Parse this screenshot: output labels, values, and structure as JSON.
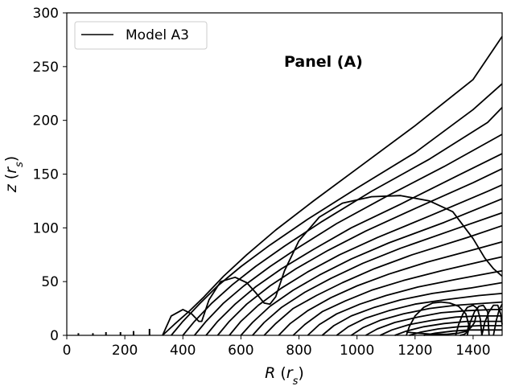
{
  "chart_data": {
    "type": "line",
    "title": "",
    "xlabel": "R (r_s)",
    "ylabel": "z (r_s)",
    "xlim": [
      0,
      1500
    ],
    "ylim": [
      0,
      300
    ],
    "xticks": [
      0,
      200,
      400,
      600,
      800,
      1000,
      1200,
      1400
    ],
    "yticks": [
      0,
      50,
      100,
      150,
      200,
      250,
      300
    ],
    "grid": false,
    "legend": {
      "placement": "top-left",
      "entries": [
        "Model A3"
      ]
    },
    "annotation": "Panel (A)",
    "colors": {
      "line": "#000000",
      "background": "#ffffff"
    },
    "series": [
      {
        "name": "Model A3",
        "role": "wavy outer boundary",
        "x": [
          330,
          360,
          400,
          430,
          455,
          465,
          490,
          530,
          580,
          620,
          650,
          680,
          700,
          720,
          750,
          800,
          870,
          950,
          1050,
          1150,
          1250,
          1330,
          1400,
          1440,
          1470,
          1500
        ],
        "y": [
          0,
          18,
          24,
          20,
          13,
          13,
          33,
          50,
          54,
          49,
          40,
          30,
          29,
          36,
          60,
          88,
          110,
          123,
          129,
          130,
          125,
          115,
          90,
          72,
          62,
          55
        ]
      },
      {
        "x": [
          330,
          370,
          420,
          470,
          540,
          620,
          720,
          850,
          1000,
          1200,
          1400,
          1500
        ],
        "y": [
          0,
          10,
          22,
          35,
          55,
          75,
          98,
          125,
          155,
          195,
          238,
          278
        ]
      },
      {
        "x": [
          360,
          400,
          460,
          520,
          600,
          700,
          830,
          1000,
          1200,
          1400,
          1500
        ],
        "y": [
          0,
          13,
          30,
          46,
          64,
          84,
          108,
          137,
          170,
          210,
          234
        ]
      },
      {
        "x": [
          400,
          440,
          500,
          570,
          650,
          750,
          880,
          1050,
          1250,
          1450,
          1500
        ],
        "y": [
          0,
          13,
          30,
          47,
          64,
          83,
          106,
          134,
          164,
          198,
          212
        ]
      },
      {
        "x": [
          440,
          480,
          540,
          610,
          700,
          800,
          930,
          1100,
          1300,
          1500
        ],
        "y": [
          0,
          13,
          30,
          46,
          64,
          82,
          104,
          129,
          157,
          187
        ]
      },
      {
        "x": [
          480,
          520,
          580,
          650,
          740,
          850,
          980,
          1150,
          1350,
          1500
        ],
        "y": [
          0,
          13,
          29,
          45,
          62,
          80,
          100,
          122,
          149,
          169
        ]
      },
      {
        "x": [
          520,
          560,
          620,
          700,
          790,
          900,
          1030,
          1200,
          1400,
          1500
        ],
        "y": [
          0,
          13,
          29,
          46,
          62,
          79,
          97,
          118,
          142,
          155
        ]
      },
      {
        "x": [
          560,
          600,
          660,
          740,
          830,
          940,
          1070,
          1250,
          1450,
          1500
        ],
        "y": [
          0,
          13,
          28,
          44,
          59,
          75,
          91,
          111,
          134,
          140
        ]
      },
      {
        "x": [
          600,
          640,
          700,
          780,
          870,
          980,
          1110,
          1300,
          1500
        ],
        "y": [
          0,
          12,
          27,
          42,
          56,
          71,
          86,
          105,
          127
        ]
      },
      {
        "x": [
          640,
          680,
          740,
          820,
          910,
          1020,
          1150,
          1340,
          1500
        ],
        "y": [
          0,
          12,
          26,
          40,
          53,
          67,
          81,
          99,
          114
        ]
      },
      {
        "x": [
          680,
          720,
          780,
          860,
          950,
          1060,
          1190,
          1380,
          1500
        ],
        "y": [
          0,
          11,
          25,
          37,
          49,
          62,
          75,
          91,
          102
        ]
      },
      {
        "x": [
          730,
          770,
          830,
          910,
          1000,
          1110,
          1240,
          1420,
          1500
        ],
        "y": [
          0,
          11,
          23,
          35,
          46,
          57,
          68,
          81,
          87
        ]
      },
      {
        "x": [
          780,
          820,
          880,
          960,
          1050,
          1160,
          1290,
          1450,
          1500
        ],
        "y": [
          0,
          10,
          22,
          32,
          42,
          51,
          60,
          70,
          73
        ]
      },
      {
        "x": [
          830,
          870,
          930,
          1010,
          1100,
          1210,
          1340,
          1500
        ],
        "y": [
          0,
          10,
          20,
          29,
          37,
          45,
          52,
          60
        ]
      },
      {
        "x": [
          880,
          920,
          980,
          1060,
          1150,
          1260,
          1390,
          1500
        ],
        "y": [
          0,
          9,
          18,
          26,
          33,
          39,
          44,
          49
        ]
      },
      {
        "x": [
          930,
          970,
          1030,
          1110,
          1200,
          1300,
          1420,
          1500
        ],
        "y": [
          0,
          8,
          16,
          23,
          29,
          33,
          37,
          39
        ]
      },
      {
        "x": [
          980,
          1020,
          1080,
          1160,
          1250,
          1340,
          1450,
          1500
        ],
        "y": [
          0,
          7,
          14,
          20,
          25,
          28,
          30,
          31
        ]
      },
      {
        "x": [
          1030,
          1070,
          1130,
          1210,
          1290,
          1380,
          1470,
          1500
        ],
        "y": [
          0,
          6,
          12,
          17,
          21,
          23,
          24,
          24
        ]
      },
      {
        "x": [
          1080,
          1120,
          1180,
          1260,
          1340,
          1420,
          1500
        ],
        "y": [
          0,
          5,
          10,
          14,
          17,
          18,
          18
        ]
      },
      {
        "x": [
          1130,
          1170,
          1230,
          1300,
          1380,
          1450,
          1500
        ],
        "y": [
          0,
          4,
          8,
          11,
          13,
          13,
          13
        ]
      },
      {
        "x": [
          1180,
          1220,
          1280,
          1350,
          1420,
          1470,
          1500
        ],
        "y": [
          0,
          3,
          6,
          8,
          9,
          9,
          9
        ]
      },
      {
        "x": [
          1230,
          1270,
          1330,
          1390,
          1450,
          1500
        ],
        "y": [
          0,
          2,
          4,
          5,
          5,
          5
        ]
      },
      {
        "x": [
          1170,
          1180,
          1200,
          1230,
          1260,
          1290,
          1320,
          1350,
          1375,
          1385,
          1380,
          1370,
          1355
        ],
        "y": [
          0,
          8,
          18,
          26,
          30,
          31,
          30,
          27,
          20,
          10,
          3,
          1,
          0
        ]
      },
      {
        "x": [
          1170,
          1210,
          1260,
          1310,
          1350,
          1380,
          1395,
          1405,
          1410
        ],
        "y": [
          3,
          2,
          1,
          1,
          2,
          4,
          8,
          12,
          18
        ]
      },
      {
        "x": [
          1340,
          1350,
          1365,
          1380,
          1400,
          1415,
          1425,
          1430
        ],
        "y": [
          0,
          10,
          20,
          26,
          28,
          25,
          15,
          0
        ]
      },
      {
        "x": [
          1380,
          1390,
          1405,
          1420,
          1435,
          1450,
          1455
        ],
        "y": [
          0,
          12,
          22,
          27,
          28,
          22,
          0
        ]
      },
      {
        "x": [
          1430,
          1440,
          1455,
          1470,
          1485,
          1495,
          1500
        ],
        "y": [
          0,
          12,
          22,
          28,
          28,
          20,
          10
        ]
      },
      {
        "x": [
          1470,
          1480,
          1490,
          1500
        ],
        "y": [
          0,
          14,
          24,
          29
        ]
      }
    ],
    "small_markers": {
      "x": [
        40,
        90,
        135,
        185,
        230,
        285
      ],
      "heights": [
        2,
        2,
        3,
        3,
        4,
        6
      ]
    }
  }
}
